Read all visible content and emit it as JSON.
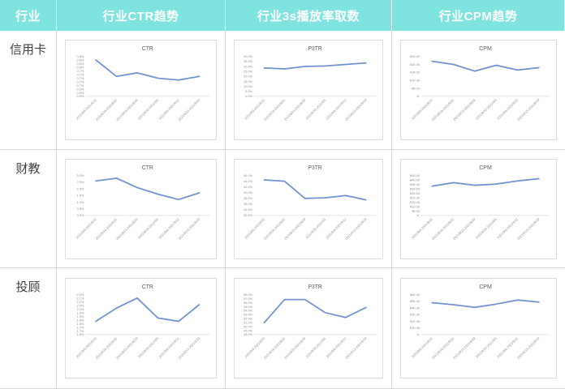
{
  "header": {
    "columns": [
      "行业",
      "行业CTR趋势",
      "行业3s播放率取数",
      "行业CPM趋势"
    ]
  },
  "rows": [
    {
      "industry": "信用卡"
    },
    {
      "industry": "财教"
    },
    {
      "industry": "投顾"
    }
  ],
  "colors": {
    "header_bg": "#7FE3DF",
    "header_text": "#FFFFFF",
    "line": "#6F92D0",
    "cell_border": "#D6D6D6",
    "chart_border": "#DCDCDC",
    "chart_title_text": "#595959",
    "tick_text": "#8C8C8C",
    "axis_line": "#D9D9D9",
    "row_label_text": "#3F3F3F"
  },
  "chart_data": [
    {
      "type": "line",
      "industry": "信用卡",
      "metric": "CTR",
      "title": "CTR",
      "categories": [
        "2021/8/9-2021/8/15",
        "2021/8/16-2021/8/22",
        "2021/8/23-2021/8/29",
        "2021/8/30-2021/9/5",
        "2021/9/6-2021/9/12",
        "2021/9/13-2021/9/19"
      ],
      "values": [
        0.8,
        0.71,
        0.73,
        0.7,
        0.69,
        0.71
      ],
      "unit": "%",
      "ylim": [
        0.6,
        0.82
      ],
      "yticks": [
        "0.8%",
        "0.8%",
        "0.8%",
        "0.8%",
        "0.7%",
        "0.7%",
        "0.7%",
        "0.7%",
        "0.7%",
        "0.6%",
        "0.6%",
        "0.6%"
      ],
      "grid": false,
      "legend": false
    },
    {
      "type": "line",
      "industry": "信用卡",
      "metric": "P3TR",
      "title": "P3TR",
      "categories": [
        "2021/8/9-2021/8/15",
        "2021/8/16-2021/8/22",
        "2021/8/23-2021/8/29",
        "2021/8/30-2021/9/5",
        "2021/9/6-2021/9/12",
        "2021/9/13-2021/9/19"
      ],
      "values": [
        28.5,
        27.5,
        30.0,
        30.5,
        32.0,
        33.5
      ],
      "unit": "%",
      "ylim": [
        0,
        40
      ],
      "yticks": [
        "40.0%",
        "35.0%",
        "30.0%",
        "25.0%",
        "20.0%",
        "15.0%",
        "10.0%",
        "5.0%",
        "0.0%"
      ],
      "grid": false,
      "legend": false
    },
    {
      "type": "line",
      "industry": "信用卡",
      "metric": "CPM",
      "title": "CPM",
      "categories": [
        "2021/8/9-2021/8/15",
        "2021/8/16-2021/8/22",
        "2021/8/23-2021/8/29",
        "2021/8/30-2021/9/5",
        "2021/9/6-2021/9/12",
        "2021/9/13-2021/9/19"
      ],
      "values": [
        22.0,
        20.0,
        15.8,
        19.5,
        16.5,
        18.0
      ],
      "unit": "¥",
      "ylim": [
        0,
        25
      ],
      "yticks": [
        "¥25.00",
        "¥20.00",
        "¥15.00",
        "¥10.00",
        "¥5.00",
        "¥-"
      ],
      "grid": false,
      "legend": false
    },
    {
      "type": "line",
      "industry": "财教",
      "metric": "CTR",
      "title": "CTR",
      "categories": [
        "2021/8/9-2021/8/15",
        "2021/8/16-2021/8/22",
        "2021/8/23-2021/8/29",
        "2021/8/30-2021/9/5",
        "2021/9/6-2021/9/12",
        "2021/9/13-2021/9/19"
      ],
      "values": [
        2.6,
        2.8,
        2.1,
        1.6,
        1.2,
        1.7
      ],
      "unit": "%",
      "ylim": [
        0,
        3.0
      ],
      "yticks": [
        "3.0%",
        "2.5%",
        "2.0%",
        "1.5%",
        "1.0%",
        "0.5%",
        "0.0%"
      ],
      "grid": false,
      "legend": false
    },
    {
      "type": "line",
      "industry": "财教",
      "metric": "P3TR",
      "title": "P3TR",
      "categories": [
        "2021/8/9-2021/8/15",
        "2021/8/16-2021/8/22",
        "2021/8/23-2021/8/29",
        "2021/8/30-2021/9/5",
        "2021/9/6-2021/9/12",
        "2021/9/13-2021/9/19"
      ],
      "values": [
        44.5,
        44.0,
        38.0,
        38.2,
        39.0,
        37.5
      ],
      "unit": "%",
      "ylim": [
        32,
        46
      ],
      "yticks": [
        "46.0%",
        "44.0%",
        "42.0%",
        "40.0%",
        "38.0%",
        "36.0%",
        "34.0%",
        "32.0%"
      ],
      "grid": false,
      "legend": false
    },
    {
      "type": "line",
      "industry": "财教",
      "metric": "CPM",
      "title": "CPM",
      "categories": [
        "2021/8/9-2021/8/15",
        "2021/8/16-2021/8/22",
        "2021/8/23-2021/8/29",
        "2021/8/30-2021/9/5",
        "2021/9/6-2021/9/12",
        "2021/9/13-2021/9/19"
      ],
      "values": [
        33.0,
        37.0,
        34.0,
        35.5,
        39.0,
        41.5
      ],
      "unit": "¥",
      "ylim": [
        0,
        45
      ],
      "yticks": [
        "¥45.00",
        "¥40.00",
        "¥35.00",
        "¥30.00",
        "¥25.00",
        "¥20.00",
        "¥15.00",
        "¥10.00",
        "¥5.00",
        "¥-"
      ],
      "grid": false,
      "legend": false
    },
    {
      "type": "line",
      "industry": "投顾",
      "metric": "CTR",
      "title": "CTR",
      "categories": [
        "2021/8/9-2021/8/15",
        "2021/8/16-2021/8/22",
        "2021/8/23-2021/8/29",
        "2021/8/30-2021/9/5",
        "2021/9/6-2021/9/12",
        "2021/9/13-2021/9/19"
      ],
      "values": [
        1.8,
        2.0,
        2.15,
        1.85,
        1.8,
        2.05
      ],
      "unit": "%",
      "ylim": [
        1.6,
        2.2
      ],
      "yticks": [
        "2.2%",
        "2.1%",
        "2.1%",
        "2.0%",
        "2.0%",
        "1.9%",
        "1.9%",
        "1.8%",
        "1.8%",
        "1.7%",
        "1.7%",
        "1.6%"
      ],
      "grid": false,
      "legend": false
    },
    {
      "type": "line",
      "industry": "投顾",
      "metric": "P3TR",
      "title": "P3TR",
      "categories": [
        "2021/8/9-2021/8/15",
        "2021/8/16-2021/8/22",
        "2021/8/23-2021/8/29",
        "2021/8/30-2021/9/5",
        "2021/9/6-2021/9/12",
        "2021/9/13-2021/9/19"
      ],
      "values": [
        51.0,
        56.8,
        56.8,
        53.5,
        52.3,
        54.8
      ],
      "unit": "%",
      "ylim": [
        48,
        58
      ],
      "yticks": [
        "58.0%",
        "57.0%",
        "56.0%",
        "55.0%",
        "54.0%",
        "53.0%",
        "52.0%",
        "51.0%",
        "50.0%",
        "49.0%",
        "48.0%"
      ],
      "grid": false,
      "legend": false
    },
    {
      "type": "line",
      "industry": "投顾",
      "metric": "CPM",
      "title": "CPM",
      "categories": [
        "2021/8/9-2021/8/15",
        "2021/8/16-2021/8/22",
        "2021/8/23-2021/8/29",
        "2021/8/30-2021/9/5",
        "2021/9/6-2021/9/12",
        "2021/9/13-2021/9/19"
      ],
      "values": [
        48.0,
        45.0,
        41.0,
        46.0,
        52.0,
        49.0
      ],
      "unit": "¥",
      "ylim": [
        0,
        60
      ],
      "yticks": [
        "¥60.00",
        "¥50.00",
        "¥40.00",
        "¥30.00",
        "¥20.00",
        "¥10.00",
        "¥-"
      ],
      "grid": false,
      "legend": false
    }
  ]
}
